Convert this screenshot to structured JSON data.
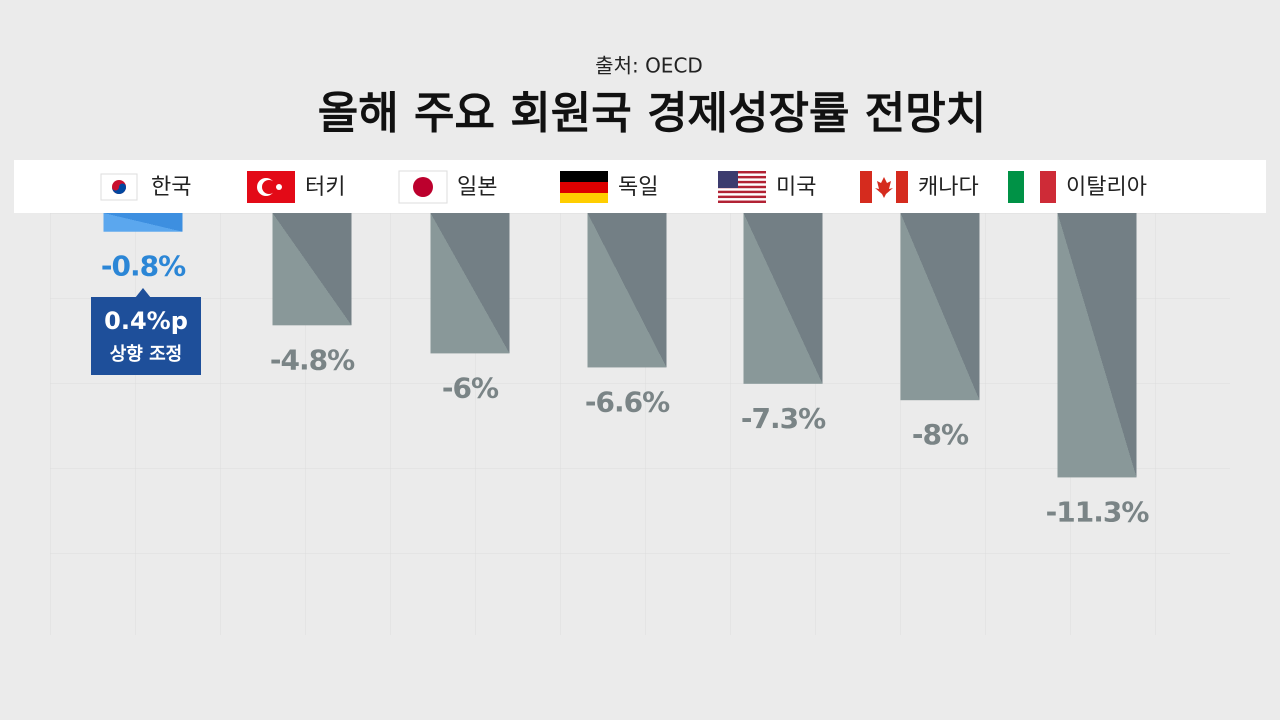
{
  "chart_data": {
    "type": "bar",
    "source": "출처: OECD",
    "title": "올해 주요 회원국 경제성장률 전망치",
    "categories": [
      "한국",
      "터키",
      "일본",
      "독일",
      "미국",
      "캐나다",
      "이탈리아"
    ],
    "values": [
      -0.8,
      -4.8,
      -6,
      -6.6,
      -7.3,
      -8,
      -11.3
    ],
    "value_labels": [
      "-0.8%",
      "-4.8%",
      "-6%",
      "-6.6%",
      "-7.3%",
      "-8%",
      "-11.3%"
    ],
    "colors": [
      "#3d8fe0",
      "#8a9a9c",
      "#8a9a9c",
      "#8a9a9c",
      "#8a9a9c",
      "#8a9a9c",
      "#8a9a9c"
    ],
    "annotation": [
      "0.4%p",
      "상향 조정"
    ]
  }
}
